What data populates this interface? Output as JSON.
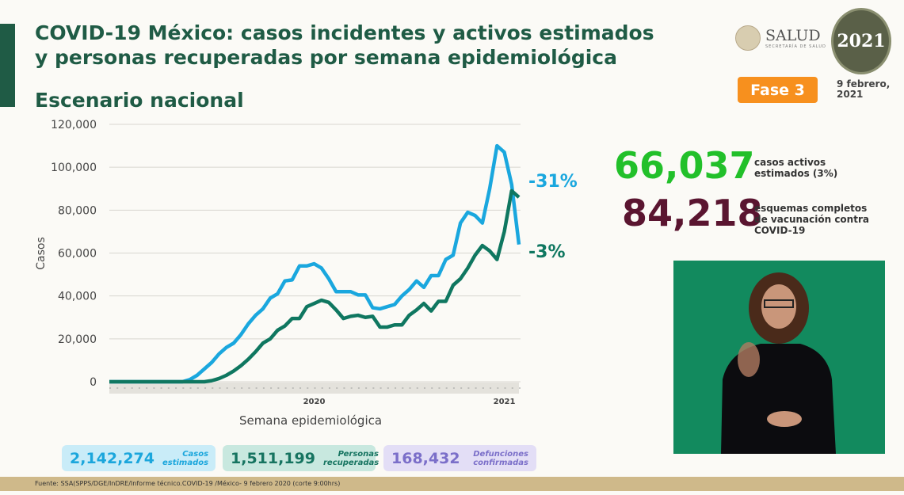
{
  "header": {
    "title": "COVID-19 México: casos incidentes y activos estimados y personas recuperadas por semana epidemiológica",
    "subtitle": "Escenario nacional",
    "salud": "SALUD",
    "salud_sub": "SECRETARÍA DE SALUD",
    "logo_2021": "2021",
    "phase": "Fase 3",
    "date": "9 febrero, 2021"
  },
  "stats": [
    {
      "value": "66,037",
      "label": "casos activos estimados (3%)",
      "color": "#22c02a"
    },
    {
      "value": "84,218",
      "label": "esquemas completos de vacunación contra COVID-19",
      "color": "#5a1530"
    }
  ],
  "cards": [
    {
      "value": "2,142,274",
      "label": "Casos estimados"
    },
    {
      "value": "1,511,199",
      "label": "Personas recuperadas"
    },
    {
      "value": "168,432",
      "label": "Defunciones confirmadas"
    }
  ],
  "footer": "Fuente: SSA(SPPS/DGE/InDRE/Informe técnico.COVID-19 /México- 9 febrero 2020 (corte 9:00hrs)",
  "chart_data": {
    "type": "line",
    "xlabel": "Semana epidemiológica",
    "ylabel": "Casos",
    "ylim": [
      0,
      120000
    ],
    "yticks": [
      0,
      20000,
      40000,
      60000,
      80000,
      100000,
      120000
    ],
    "ytick_labels": [
      "0",
      "20,000",
      "40,000",
      "60,000",
      "80,000",
      "100,000",
      "120,000"
    ],
    "year_labels": [
      {
        "label": "2020",
        "index": 28
      },
      {
        "label": "2021",
        "index": 54
      }
    ],
    "grid": true,
    "series": [
      {
        "color": "#1aa7de",
        "end_label": "-31%",
        "values": [
          0,
          0,
          0,
          0,
          0,
          0,
          0,
          0,
          0,
          0,
          0,
          1000,
          3000,
          6000,
          9000,
          13000,
          16000,
          18000,
          22000,
          27000,
          31000,
          34000,
          39000,
          41000,
          47000,
          47500,
          54000,
          54000,
          55000,
          53000,
          48000,
          42000,
          42000,
          42000,
          40500,
          40500,
          34500,
          34000,
          35000,
          36000,
          40000,
          43000,
          47000,
          44000,
          49500,
          49500,
          57000,
          59000,
          74000,
          79000,
          77500,
          74000,
          90000,
          110000,
          107000,
          92000,
          64000
        ]
      },
      {
        "color": "#0f7760",
        "end_label": "-3%",
        "values": [
          0,
          0,
          0,
          0,
          0,
          0,
          0,
          0,
          0,
          0,
          0,
          0,
          0,
          0,
          500,
          1500,
          3000,
          5000,
          7500,
          10500,
          14000,
          18000,
          20000,
          24000,
          26000,
          29500,
          29500,
          35000,
          36500,
          38000,
          37000,
          33500,
          29500,
          30500,
          31000,
          30000,
          30500,
          25500,
          25500,
          26500,
          26500,
          31000,
          33500,
          36500,
          33000,
          37500,
          37500,
          45000,
          48000,
          53000,
          59000,
          63500,
          61000,
          57000,
          70000,
          89000,
          86000
        ]
      }
    ]
  }
}
